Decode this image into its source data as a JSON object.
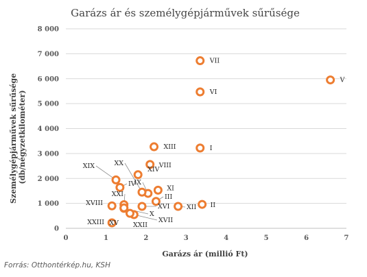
{
  "chart_data": {
    "type": "scatter",
    "title": "Garázs ár és személygépjárművek sűrűsége",
    "xlabel": "Garázs ár (millió Ft)",
    "ylabel": "Személygépjárművek sűrűsége (db/négyzetkilométer)",
    "xlim": [
      0,
      7
    ],
    "ylim": [
      0,
      8000
    ],
    "xticks": [
      "0",
      "1",
      "2",
      "3",
      "4",
      "5",
      "6",
      "7"
    ],
    "yticks": [
      "0",
      "1 000",
      "2 000",
      "3 000",
      "4 000",
      "5 000",
      "6 000",
      "7 000",
      "8 000"
    ],
    "grid": "horizontal",
    "marker_color": "#ED7D31",
    "points": [
      {
        "label": "V",
        "x": 6.6,
        "y": 5950
      },
      {
        "label": "VII",
        "x": 3.35,
        "y": 6720
      },
      {
        "label": "VI",
        "x": 3.35,
        "y": 5470
      },
      {
        "label": "I",
        "x": 3.35,
        "y": 3220
      },
      {
        "label": "II",
        "x": 3.4,
        "y": 960
      },
      {
        "label": "XIII",
        "x": 2.2,
        "y": 3270
      },
      {
        "label": "VIII",
        "x": 2.1,
        "y": 2560
      },
      {
        "label": "XIV",
        "x": 1.8,
        "y": 2150
      },
      {
        "label": "XI",
        "x": 2.3,
        "y": 1530
      },
      {
        "label": "IX",
        "x": 2.05,
        "y": 1400
      },
      {
        "label": "XX",
        "x": 1.9,
        "y": 1450
      },
      {
        "label": "XIX",
        "x": 1.25,
        "y": 1940
      },
      {
        "label": "IV",
        "x": 1.35,
        "y": 1640
      },
      {
        "label": "XXI",
        "x": 1.45,
        "y": 950
      },
      {
        "label": "III",
        "x": 2.25,
        "y": 1080
      },
      {
        "label": "XII",
        "x": 2.8,
        "y": 880
      },
      {
        "label": "XVI",
        "x": 1.9,
        "y": 880
      },
      {
        "label": "XVIII",
        "x": 1.15,
        "y": 900
      },
      {
        "label": "X",
        "x": 1.45,
        "y": 800
      },
      {
        "label": "XVII",
        "x": 1.7,
        "y": 550
      },
      {
        "label": "XXII",
        "x": 1.6,
        "y": 600
      },
      {
        "label": "XV",
        "x": 1.45,
        "y": 820
      },
      {
        "label": "XXIII",
        "x": 1.15,
        "y": 220
      }
    ],
    "source": "Forrás: Otthontérkép.hu, KSH"
  }
}
